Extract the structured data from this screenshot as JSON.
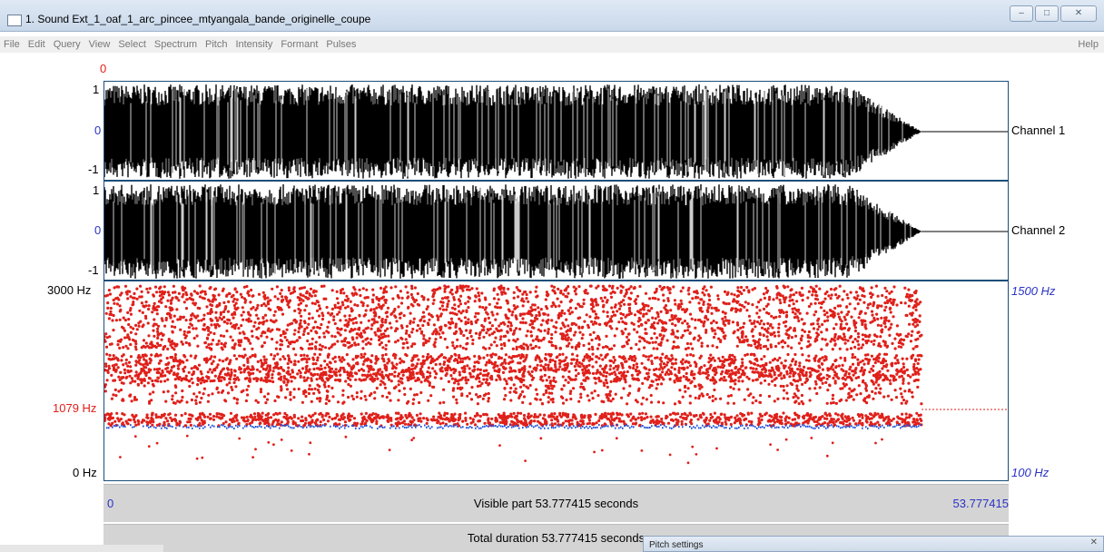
{
  "window": {
    "title": "1. Sound Ext_1_oaf_1_arc_pincee_mtyangala_bande_originelle_coupe",
    "minimize": "–",
    "maximize": "□",
    "close": "✕"
  },
  "menu": {
    "items": [
      "File",
      "Edit",
      "Query",
      "View",
      "Select",
      "Spectrum",
      "Pitch",
      "Intensity",
      "Formant",
      "Pulses"
    ],
    "help": "Help"
  },
  "cursor_value": "0",
  "channel1": {
    "top": "1",
    "mid": "0",
    "bottom": "-1",
    "name": "Channel 1"
  },
  "channel2": {
    "top": "1",
    "mid": "0",
    "bottom": "-1",
    "name": "Channel 2"
  },
  "pitch": {
    "left_top": "3000 Hz",
    "left_mark": "1079 Hz",
    "left_bottom": "0 Hz",
    "right_top": "1500 Hz",
    "right_bottom": "100 Hz"
  },
  "time": {
    "start": "0",
    "end": "53.777415",
    "visible": "Visible part 53.777415 seconds",
    "total": "Total duration 53.777415 seconds"
  },
  "dialog": {
    "title": "Pitch settings",
    "close": "✕"
  },
  "colors": {
    "waveform": "#000000",
    "formant_dots": "#e0201a",
    "pitch_track": "#1f4fd8",
    "panel_border": "#1a4e7a",
    "axis_red": "#e0201a",
    "axis_blue": "#2a33c4"
  }
}
